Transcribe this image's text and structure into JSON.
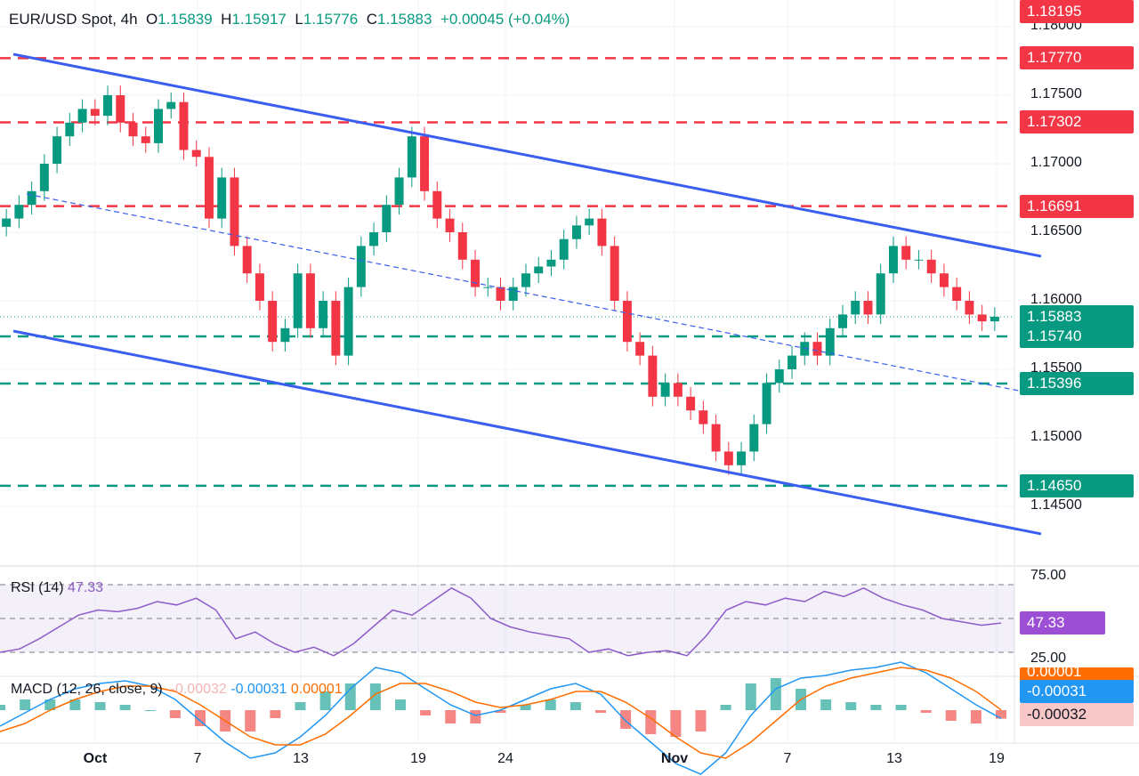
{
  "header": {
    "symbol": "EUR/USD Spot, 4h",
    "o_label": "O",
    "open": "1.15839",
    "h_label": "H",
    "high": "1.15917",
    "l_label": "L",
    "low": "1.15776",
    "c_label": "C",
    "close": "1.15883",
    "change": "+0.00045 (+0.04%)"
  },
  "colors": {
    "up": "#089981",
    "down": "#f23645",
    "channel": "#3a5ef0",
    "resistance": "#f23645",
    "support": "#089981",
    "rsi": "#8e5cc9",
    "macd": "#2196f3",
    "signal": "#ff6d00"
  },
  "chart_data": [
    {
      "type": "candlestick",
      "title": "EUR/USD Spot, 4h",
      "y_ticks": [
        "1.18000",
        "1.17500",
        "1.17000",
        "1.16500",
        "1.16000",
        "1.15500",
        "1.15000",
        "1.14500"
      ],
      "x_ticks": [
        "Oct",
        "7",
        "13",
        "19",
        "24",
        "Nov",
        "7",
        "13",
        "19"
      ],
      "ylim": [
        1.1425,
        1.1825
      ],
      "closes": [
        1.166,
        1.167,
        1.168,
        1.17,
        1.172,
        1.173,
        1.174,
        1.1735,
        1.175,
        1.173,
        1.172,
        1.1715,
        1.174,
        1.1745,
        1.171,
        1.1705,
        1.166,
        1.169,
        1.164,
        1.162,
        1.16,
        1.157,
        1.158,
        1.162,
        1.158,
        1.16,
        1.156,
        1.161,
        1.164,
        1.165,
        1.167,
        1.169,
        1.172,
        1.168,
        1.166,
        1.165,
        1.163,
        1.161,
        1.161,
        1.16,
        1.161,
        1.162,
        1.1625,
        1.163,
        1.1645,
        1.1655,
        1.166,
        1.164,
        1.16,
        1.157,
        1.156,
        1.153,
        1.154,
        1.153,
        1.152,
        1.151,
        1.149,
        1.148,
        1.149,
        1.151,
        1.154,
        1.155,
        1.156,
        1.157,
        1.156,
        1.158,
        1.159,
        1.16,
        1.159,
        1.162,
        1.164,
        1.163,
        1.163,
        1.162,
        1.161,
        1.16,
        1.159,
        1.1585,
        1.15883
      ],
      "levels": [
        {
          "price": "1.18195",
          "kind": "resistance",
          "line": false
        },
        {
          "price": "1.17770",
          "kind": "resistance",
          "line": true
        },
        {
          "price": "1.17302",
          "kind": "resistance",
          "line": true
        },
        {
          "price": "1.16691",
          "kind": "resistance",
          "line": true
        },
        {
          "price": "1.15883",
          "kind": "current",
          "line": true
        },
        {
          "price": "1.15740",
          "kind": "support",
          "line": true
        },
        {
          "price": "1.15396",
          "kind": "support",
          "line": true
        },
        {
          "price": "1.14650",
          "kind": "support",
          "line": true
        }
      ],
      "trendlines": [
        {
          "name": "channel-upper",
          "start": 1.17799,
          "end": 1.16325,
          "style": "solid"
        },
        {
          "name": "channel-lower",
          "start": 1.15779,
          "end": 1.14299,
          "style": "solid"
        },
        {
          "name": "channel-mid",
          "start": 1.16779,
          "end": 1.15318,
          "style": "dashed"
        }
      ]
    },
    {
      "type": "line",
      "title": "RSI (14)",
      "value": "47.33",
      "ylim": [
        25,
        75
      ],
      "y_ticks": [
        "75.00",
        "25.00"
      ],
      "bands": [
        30,
        50,
        70
      ],
      "values": [
        30,
        32,
        38,
        45,
        52,
        55,
        54,
        56,
        60,
        58,
        62,
        55,
        38,
        42,
        35,
        30,
        33,
        28,
        35,
        45,
        55,
        52,
        60,
        68,
        62,
        50,
        45,
        42,
        40,
        38,
        30,
        32,
        28,
        30,
        31,
        28,
        40,
        55,
        60,
        58,
        62,
        60,
        66,
        63,
        68,
        62,
        58,
        55,
        50,
        48,
        46,
        47.33
      ]
    },
    {
      "type": "line",
      "title": "MACD (12, 26, close, 9)",
      "histogram": "-0.00032",
      "macd": "-0.00031",
      "signal": "0.00001",
      "macd_values": [
        -0.0006,
        -0.0001,
        0.0004,
        0.0008,
        0.001,
        0.0011,
        0.0009,
        0.0004,
        -0.0004,
        -0.0012,
        -0.0018,
        -0.0016,
        -0.001,
        -0.0002,
        0.0008,
        0.0016,
        0.0014,
        0.0008,
        0.0002,
        -0.0002,
        0.0,
        0.0004,
        0.0008,
        0.001,
        0.0006,
        -0.0004,
        -0.0012,
        -0.002,
        -0.0024,
        -0.0016,
        -0.0002,
        0.0008,
        0.0012,
        0.0013,
        0.0015,
        0.0016,
        0.0018,
        0.0014,
        0.0008,
        0.0002,
        -0.00031
      ],
      "signal_values": [
        -0.0008,
        -0.0005,
        0.0,
        0.0004,
        0.0007,
        0.0009,
        0.0009,
        0.0007,
        0.0002,
        -0.0004,
        -0.001,
        -0.0013,
        -0.0013,
        -0.0009,
        -0.0002,
        0.0006,
        0.001,
        0.001,
        0.0007,
        0.0003,
        0.0001,
        0.0002,
        0.0004,
        0.0007,
        0.0007,
        0.0003,
        -0.0003,
        -0.001,
        -0.0016,
        -0.0018,
        -0.0012,
        -0.0004,
        0.0004,
        0.0009,
        0.0012,
        0.0014,
        0.0016,
        0.0015,
        0.0012,
        0.0007,
        1e-05
      ]
    }
  ],
  "axis_tags": {
    "rsi": "47.33",
    "signal": "0.00001",
    "macd": "-0.00031",
    "hist": "-0.00032"
  }
}
